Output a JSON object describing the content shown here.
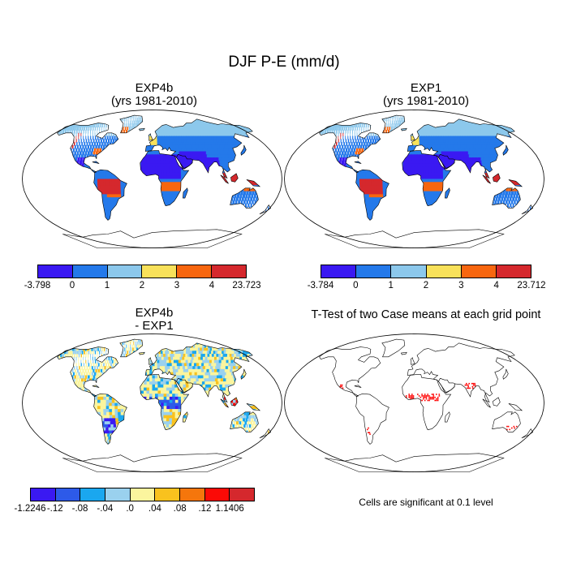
{
  "figure": {
    "title": "DJF P-E (mm/d)"
  },
  "panels": [
    {
      "id": "exp4b",
      "title_line1": "EXP4b",
      "title_line2": "(yrs 1981-2010)",
      "colorbar": {
        "colors": [
          "#3a19f2",
          "#2479ea",
          "#8cc8ec",
          "#f8e15a",
          "#f7660f",
          "#d5282d"
        ],
        "labels": [
          "-3.798",
          "0",
          "1",
          "2",
          "3",
          "4",
          "23.723"
        ]
      }
    },
    {
      "id": "exp1",
      "title_line1": "EXP1",
      "title_line2": "(yrs 1981-2010)",
      "colorbar": {
        "colors": [
          "#3a19f2",
          "#2479ea",
          "#8cc8ec",
          "#f8e15a",
          "#f7660f",
          "#d5282d"
        ],
        "labels": [
          "-3.784",
          "0",
          "1",
          "2",
          "3",
          "4",
          "23.712"
        ]
      }
    },
    {
      "id": "diff",
      "title_line1": "EXP4b",
      "title_line2": "- EXP1",
      "colorbar": {
        "colors": [
          "#3a19f2",
          "#2d5ae9",
          "#1aa7ef",
          "#9ad1ee",
          "#fbf59e",
          "#f9c21e",
          "#f5760c",
          "#fb0a06",
          "#d5282d"
        ],
        "labels": [
          "-1.2246",
          "-.12",
          "-.08",
          "-.04",
          ".0",
          ".04",
          ".08",
          ".12",
          "1.1406"
        ]
      }
    },
    {
      "id": "ttest",
      "title_line1": "T-Test of two Case means at each grid point",
      "note": "Cells are significant at 0.1 level",
      "significance_color": "#ff0000"
    }
  ]
}
